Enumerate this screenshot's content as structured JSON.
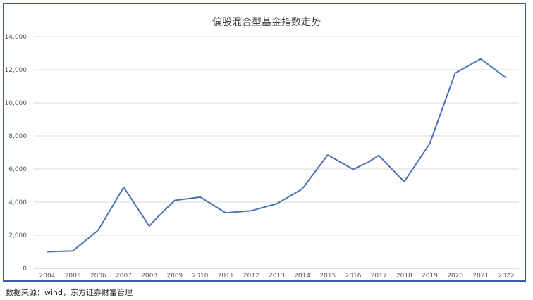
{
  "chart_data": {
    "type": "line",
    "title": "偏股混合型基金指数走势",
    "xlabel": "",
    "ylabel": "",
    "categories": [
      "2004",
      "2005",
      "2006",
      "2007",
      "2008",
      "2009",
      "2010",
      "2011",
      "2012",
      "2013",
      "2014",
      "2015",
      "2016",
      "2017",
      "2018",
      "2019",
      "2020",
      "2021",
      "2022"
    ],
    "series": [
      {
        "x": [
          2004.0,
          2005.0,
          2006.0,
          2007.0,
          2008.0,
          2008.3,
          2009.0,
          2010.0,
          2011.0,
          2012.0,
          2013.0,
          2014.0,
          2015.0,
          2016.0,
          2016.6,
          2017.0,
          2018.0,
          2019.0,
          2020.0,
          2021.0,
          2021.7,
          2022.0
        ],
        "values": [
          1000,
          1050,
          2300,
          4900,
          2550,
          3050,
          4100,
          4300,
          3350,
          3480,
          3900,
          4800,
          6850,
          5980,
          6420,
          6820,
          5230,
          7530,
          11800,
          12650,
          11850,
          11500
        ],
        "color": "#4a72b8"
      }
    ],
    "ylim": [
      0,
      14000
    ],
    "yticks": [
      "0",
      "2,000",
      "4,000",
      "6,000",
      "8,000",
      "10,000",
      "12,000",
      "14,000"
    ],
    "grid": true,
    "legend": "none"
  },
  "source_note": "数据来源：wind，东方证券财富管理"
}
